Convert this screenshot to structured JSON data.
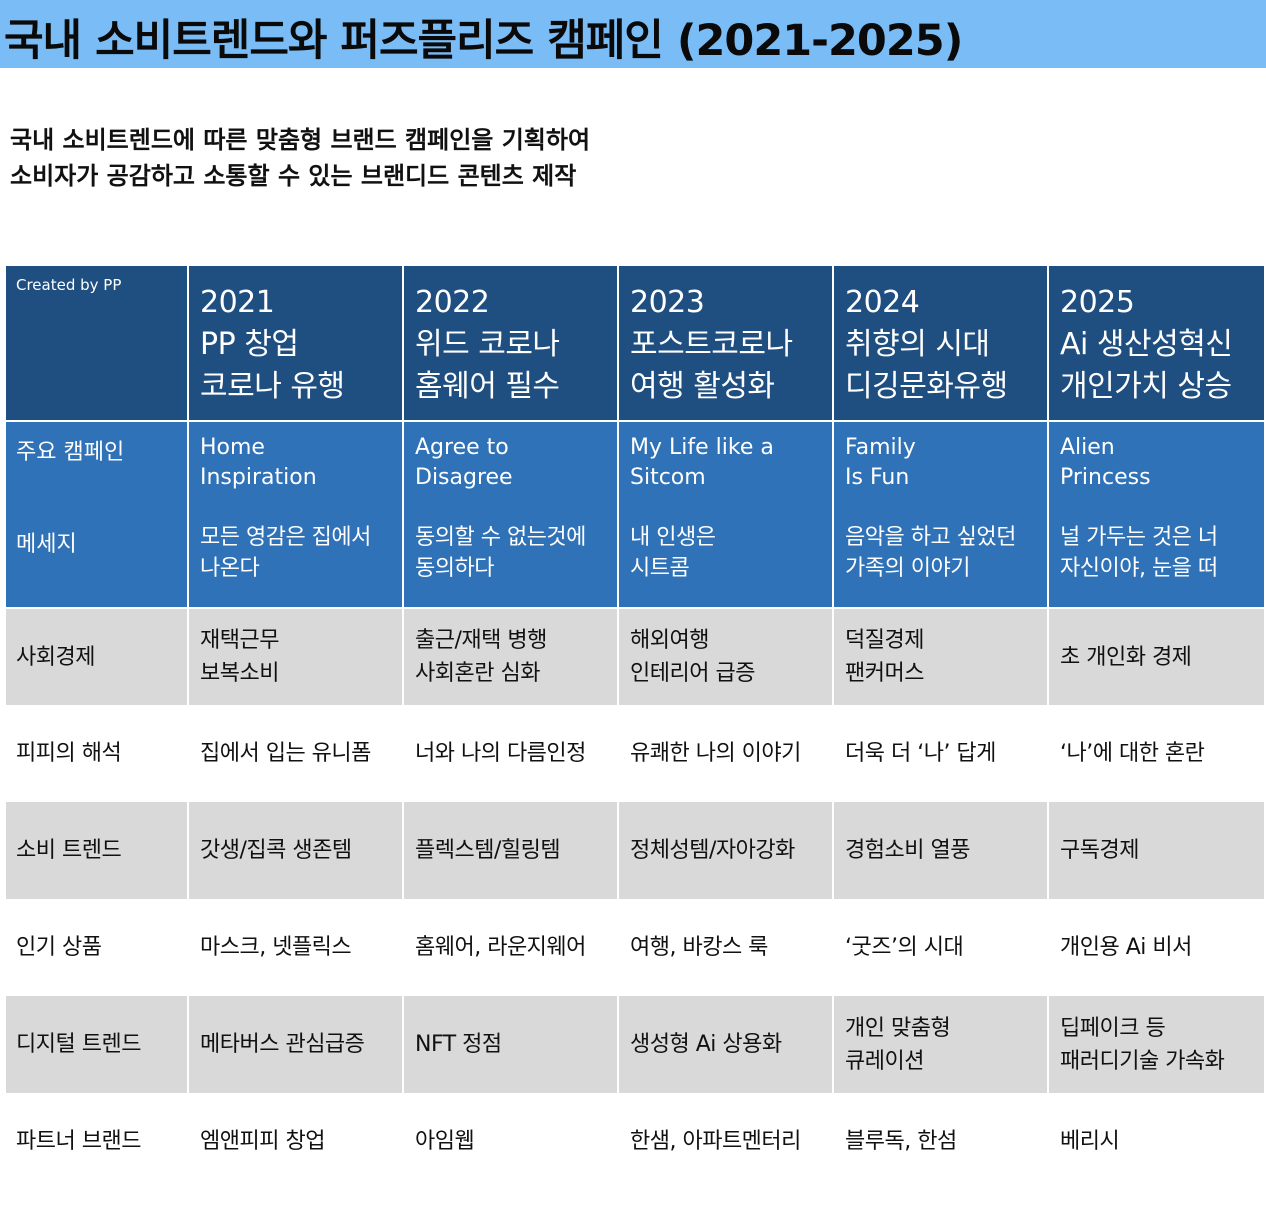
{
  "title": "국내 소비트렌드와 퍼즈플리즈 캠페인 (2021-2025)",
  "intro": {
    "line1": "국내 소비트렌드에 따른 맞춤형 브랜드 캠페인을 기획하여",
    "line2": "소비자가 공감하고 소통할 수 있는 브랜디드 콘텐츠 제작"
  },
  "corner": "Created by PP",
  "years": [
    {
      "year": "2021",
      "line2": "PP 창업",
      "line3": "코로나 유행"
    },
    {
      "year": "2022",
      "line2": "위드 코로나",
      "line3": "홈웨어 필수"
    },
    {
      "year": "2023",
      "line2": "포스트코로나",
      "line3": "여행 활성화"
    },
    {
      "year": "2024",
      "line2": "취향의 시대",
      "line3": "디깅문화유행"
    },
    {
      "year": "2025",
      "line2": "Ai 생산성혁신",
      "line3": "개인가치 상승"
    }
  ],
  "campaign_labels": {
    "campaign": "주요 캠페인",
    "message": "메세지"
  },
  "campaigns": [
    {
      "name": "Home\nInspiration",
      "message": "모든 영감은 집에서\n나온다"
    },
    {
      "name": "Agree to\nDisagree",
      "message": "동의할 수 없는것에\n동의하다"
    },
    {
      "name": "My Life like a\nSitcom",
      "message": "내 인생은\n시트콤"
    },
    {
      "name": "Family\nIs Fun",
      "message": "음악을 하고 싶었던\n가족의 이야기"
    },
    {
      "name": "Alien\nPrincess",
      "message": "널 가두는 것은 너\n자신이야, 눈을 떠"
    }
  ],
  "rows": [
    {
      "label": "사회경제",
      "cells": [
        "재택근무\n보복소비",
        "출근/재택 병행\n사회혼란 심화",
        "해외여행\n인테리어 급증",
        "덕질경제\n팬커머스",
        "초 개인화 경제"
      ]
    },
    {
      "label": "피피의 해석",
      "cells": [
        "집에서 입는 유니폼",
        "너와 나의 다름인정",
        "유쾌한 나의 이야기",
        "더욱 더 ‘나’ 답게",
        "‘나’에 대한 혼란"
      ]
    },
    {
      "label": "소비 트렌드",
      "cells": [
        "갓생/집콕 생존템",
        "플렉스템/힐링템",
        "정체성템/자아강화",
        "경험소비 열풍",
        "구독경제"
      ]
    },
    {
      "label": "인기 상품",
      "cells": [
        "마스크, 넷플릭스",
        "홈웨어, 라운지웨어",
        "여행, 바캉스 룩",
        "‘굿즈’의 시대",
        "개인용 Ai 비서"
      ]
    },
    {
      "label": "디지털 트렌드",
      "cells": [
        "메타버스 관심급증",
        "NFT 정점",
        "생성형 Ai 상용화",
        "개인 맞춤형\n큐레이션",
        "딥페이크 등\n패러디기술 가속화"
      ]
    },
    {
      "label": "파트너 브랜드",
      "cells": [
        "엠앤피피 창업",
        "아임웹",
        "한샘, 아파트멘터리",
        "블루독, 한섬",
        "베리시"
      ]
    }
  ]
}
